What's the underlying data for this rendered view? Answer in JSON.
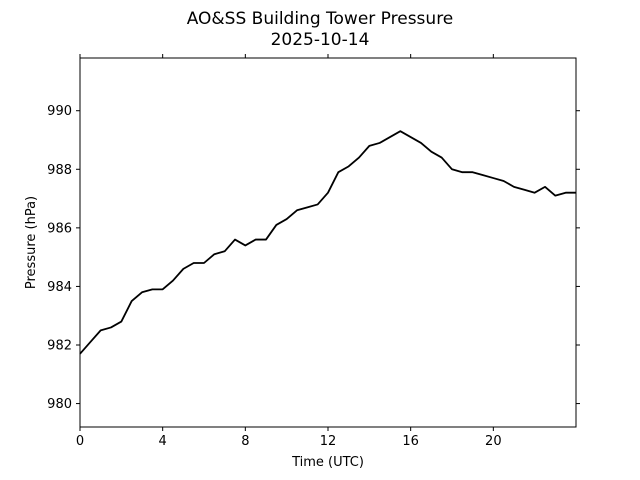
{
  "chart_data": {
    "type": "line",
    "title": "AO&SS Building Tower Pressure",
    "subtitle": "2025-10-14",
    "x_label": "Time (UTC)",
    "y_label": "Pressure (hPa)",
    "x": [
      0,
      0.5,
      1,
      1.5,
      2,
      2.5,
      3,
      3.5,
      4,
      4.5,
      5,
      5.5,
      6,
      6.5,
      7,
      7.5,
      8,
      8.5,
      9,
      9.5,
      10,
      10.5,
      11,
      11.5,
      12,
      12.5,
      13,
      13.5,
      14,
      14.5,
      15,
      15.5,
      16,
      16.5,
      17,
      17.5,
      18,
      18.5,
      19,
      19.5,
      20,
      20.5,
      21,
      21.5,
      22,
      22.5,
      23,
      23.5,
      24
    ],
    "series": [
      {
        "name": "Pressure",
        "color": "#000000",
        "values": [
          981.7,
          982.1,
          982.5,
          982.6,
          982.8,
          983.5,
          983.8,
          983.9,
          983.9,
          984.2,
          984.6,
          984.8,
          984.8,
          985.1,
          985.2,
          985.6,
          985.4,
          985.6,
          985.6,
          986.1,
          986.3,
          986.6,
          986.7,
          986.8,
          987.2,
          987.9,
          988.1,
          988.4,
          988.8,
          988.9,
          989.1,
          989.3,
          989.1,
          988.9,
          988.6,
          988.4,
          988.0,
          987.9,
          987.9,
          987.8,
          987.7,
          987.6,
          987.4,
          987.3,
          987.2,
          987.4,
          987.1,
          987.2,
          987.2
        ]
      }
    ],
    "xlim": [
      0,
      24
    ],
    "xticks": [
      0,
      4,
      8,
      12,
      16,
      20
    ],
    "ylim": [
      979.2,
      991.8
    ],
    "yticks": [
      980,
      982,
      984,
      986,
      988,
      990
    ],
    "grid": false
  }
}
